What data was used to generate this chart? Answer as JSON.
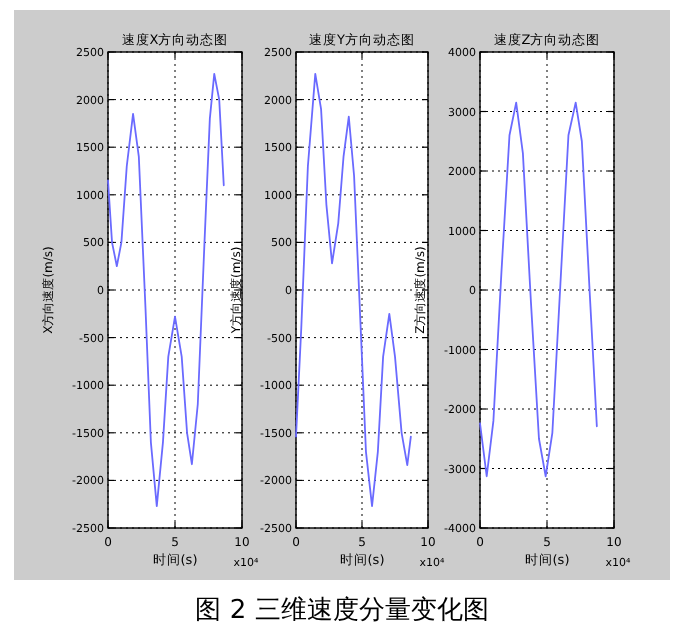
{
  "chart_data": [
    {
      "type": "line",
      "title": "速度X方向动态图",
      "xlabel": "时间(s)",
      "ylabel": "X方向速度(m/s)",
      "annotations": [
        "x10⁴"
      ],
      "xlim": [
        0,
        10
      ],
      "xticks": [
        0,
        5,
        10
      ],
      "ylim": [
        -2500,
        2500
      ],
      "yticks": [
        -2500,
        -2000,
        -1500,
        -1000,
        -500,
        0,
        500,
        1000,
        1500,
        2000,
        2500
      ],
      "grid": true,
      "x": [
        0,
        0.3,
        0.66,
        1.0,
        1.4,
        1.87,
        2.3,
        2.8,
        3.2,
        3.64,
        4.1,
        4.5,
        5.0,
        5.5,
        5.9,
        6.26,
        6.7,
        7.2,
        7.6,
        7.93,
        8.3,
        8.64
      ],
      "series": [
        {
          "color": "#6a6aff",
          "values": [
            1150,
            500,
            250,
            500,
            1300,
            1850,
            1400,
            -200,
            -1600,
            -2270,
            -1600,
            -700,
            -280,
            -700,
            -1500,
            -1830,
            -1200,
            500,
            1800,
            2270,
            2000,
            1100
          ]
        }
      ]
    },
    {
      "type": "line",
      "title": "速度Y方向动态图",
      "xlabel": "时间(s)",
      "ylabel": "Y方向速度(m/s)",
      "annotations": [
        "x10⁴"
      ],
      "xlim": [
        0,
        10
      ],
      "xticks": [
        0,
        5,
        10
      ],
      "ylim": [
        -2500,
        2500
      ],
      "yticks": [
        -2500,
        -2000,
        -1500,
        -1000,
        -500,
        0,
        500,
        1000,
        1500,
        2000,
        2500
      ],
      "grid": true,
      "x": [
        0,
        0.4,
        0.9,
        1.46,
        1.9,
        2.3,
        2.73,
        3.2,
        3.6,
        4.0,
        4.4,
        4.9,
        5.3,
        5.76,
        6.2,
        6.6,
        7.07,
        7.5,
        8.0,
        8.43,
        8.7
      ],
      "series": [
        {
          "color": "#6a6aff",
          "values": [
            -1540,
            -400,
            1300,
            2270,
            1900,
            900,
            280,
            700,
            1400,
            1820,
            1200,
            -400,
            -1700,
            -2270,
            -1700,
            -700,
            -250,
            -700,
            -1500,
            -1840,
            -1540
          ]
        }
      ]
    },
    {
      "type": "line",
      "title": "速度Z方向动态图",
      "xlabel": "时间(s)",
      "ylabel": "Z方向速度(m/s)",
      "annotations": [
        "x10⁴",
        "图 2 三维速度分量变化图"
      ],
      "xlim": [
        0,
        10
      ],
      "xticks": [
        0,
        5,
        10
      ],
      "ylim": [
        -4000,
        4000
      ],
      "yticks": [
        -4000,
        -3000,
        -2000,
        -1000,
        0,
        1000,
        2000,
        3000,
        4000
      ],
      "grid": true,
      "x": [
        0,
        0.5,
        1.0,
        1.6,
        2.2,
        2.7,
        3.2,
        3.8,
        4.4,
        4.9,
        5.4,
        6.0,
        6.6,
        7.14,
        7.6,
        8.2,
        8.72
      ],
      "series": [
        {
          "color": "#6a6aff",
          "values": [
            -2240,
            -3130,
            -2200,
            300,
            2600,
            3150,
            2300,
            -200,
            -2500,
            -3130,
            -2400,
            100,
            2600,
            3150,
            2500,
            -100,
            -2290
          ]
        }
      ]
    }
  ]
}
